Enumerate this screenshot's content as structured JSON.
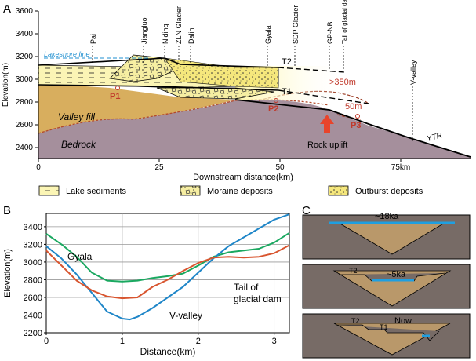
{
  "panelA": {
    "label": "A",
    "lakeshore": "Lakeshore line",
    "locations": [
      "Pai",
      "Jiangluo",
      "Niding",
      "ZLN Glacier",
      "Dalin",
      "Gyala",
      "SDP Glacier",
      "GP-NB",
      "Tail of glacial dam",
      "V-valley"
    ],
    "t2": "T2",
    "t1": "T1",
    "uplift350": ">350m",
    "uplift50": "50m",
    "p1": "P1",
    "p2": "P2",
    "p3": "P3",
    "rockUplift": "Rock uplift",
    "valleyFill": "Valley fill",
    "bedrock": "Bedrock",
    "ytr": "YTR",
    "yLabel": "Elevation(m)",
    "xLabel": "Downstream distance(km)",
    "yTicks": [
      "2400",
      "2600",
      "2800",
      "3000",
      "3200",
      "3400",
      "3600"
    ],
    "xTicks": [
      "0",
      "25",
      "50",
      "75km"
    ]
  },
  "legend": [
    "Lake sediments",
    "Moraine deposits",
    "Outburst deposits"
  ],
  "panelB": {
    "label": "B",
    "yLabel": "Elevation(m)",
    "xLabel": "Distance(km)",
    "annot": {
      "gyala": "Gyala",
      "vvalley": "V-valley",
      "tail1": "Tail of",
      "tail2": "glacial dam"
    }
  },
  "panelC": {
    "label": "C",
    "box1": "~18ka",
    "box2": "~5ka",
    "box3": "Now",
    "t2": "T2",
    "t1": "T1"
  },
  "chart_data": {
    "type": "line",
    "xlabel": "Distance(km)",
    "ylabel": "Elevation(m)",
    "xlim": [
      0,
      3.2
    ],
    "ylim": [
      2200,
      3550
    ],
    "xticks": [
      0,
      1,
      2,
      3
    ],
    "yticks": [
      2200,
      2400,
      2600,
      2800,
      3000,
      3200,
      3400
    ],
    "grid": true,
    "series": [
      {
        "name": "Gyala",
        "color": "#1aa860",
        "x": [
          0,
          0.2,
          0.4,
          0.6,
          0.8,
          1.0,
          1.2,
          1.4,
          1.6,
          1.8,
          2.0,
          2.2,
          2.4,
          2.6,
          2.8,
          3.0,
          3.2
        ],
        "y": [
          3320,
          3200,
          3060,
          2880,
          2790,
          2780,
          2790,
          2820,
          2840,
          2870,
          2960,
          3060,
          3110,
          3130,
          3150,
          3220,
          3330
        ]
      },
      {
        "name": "V-valley",
        "color": "#1f86c8",
        "x": [
          0,
          0.2,
          0.4,
          0.6,
          0.8,
          1.0,
          1.1,
          1.2,
          1.4,
          1.6,
          1.8,
          2.0,
          2.2,
          2.4,
          2.6,
          2.8,
          3.0,
          3.2
        ],
        "y": [
          3180,
          3040,
          2860,
          2650,
          2440,
          2360,
          2350,
          2380,
          2480,
          2600,
          2720,
          2880,
          3040,
          3180,
          3280,
          3380,
          3480,
          3540
        ]
      },
      {
        "name": "Tail of glacial dam",
        "color": "#d8552f",
        "x": [
          0,
          0.2,
          0.4,
          0.6,
          0.8,
          1.0,
          1.2,
          1.4,
          1.6,
          1.8,
          2.0,
          2.2,
          2.4,
          2.6,
          2.8,
          3.0,
          3.2
        ],
        "y": [
          3130,
          2960,
          2790,
          2680,
          2610,
          2590,
          2600,
          2720,
          2800,
          2900,
          2990,
          3050,
          3060,
          3050,
          3060,
          3100,
          3190
        ]
      }
    ]
  }
}
